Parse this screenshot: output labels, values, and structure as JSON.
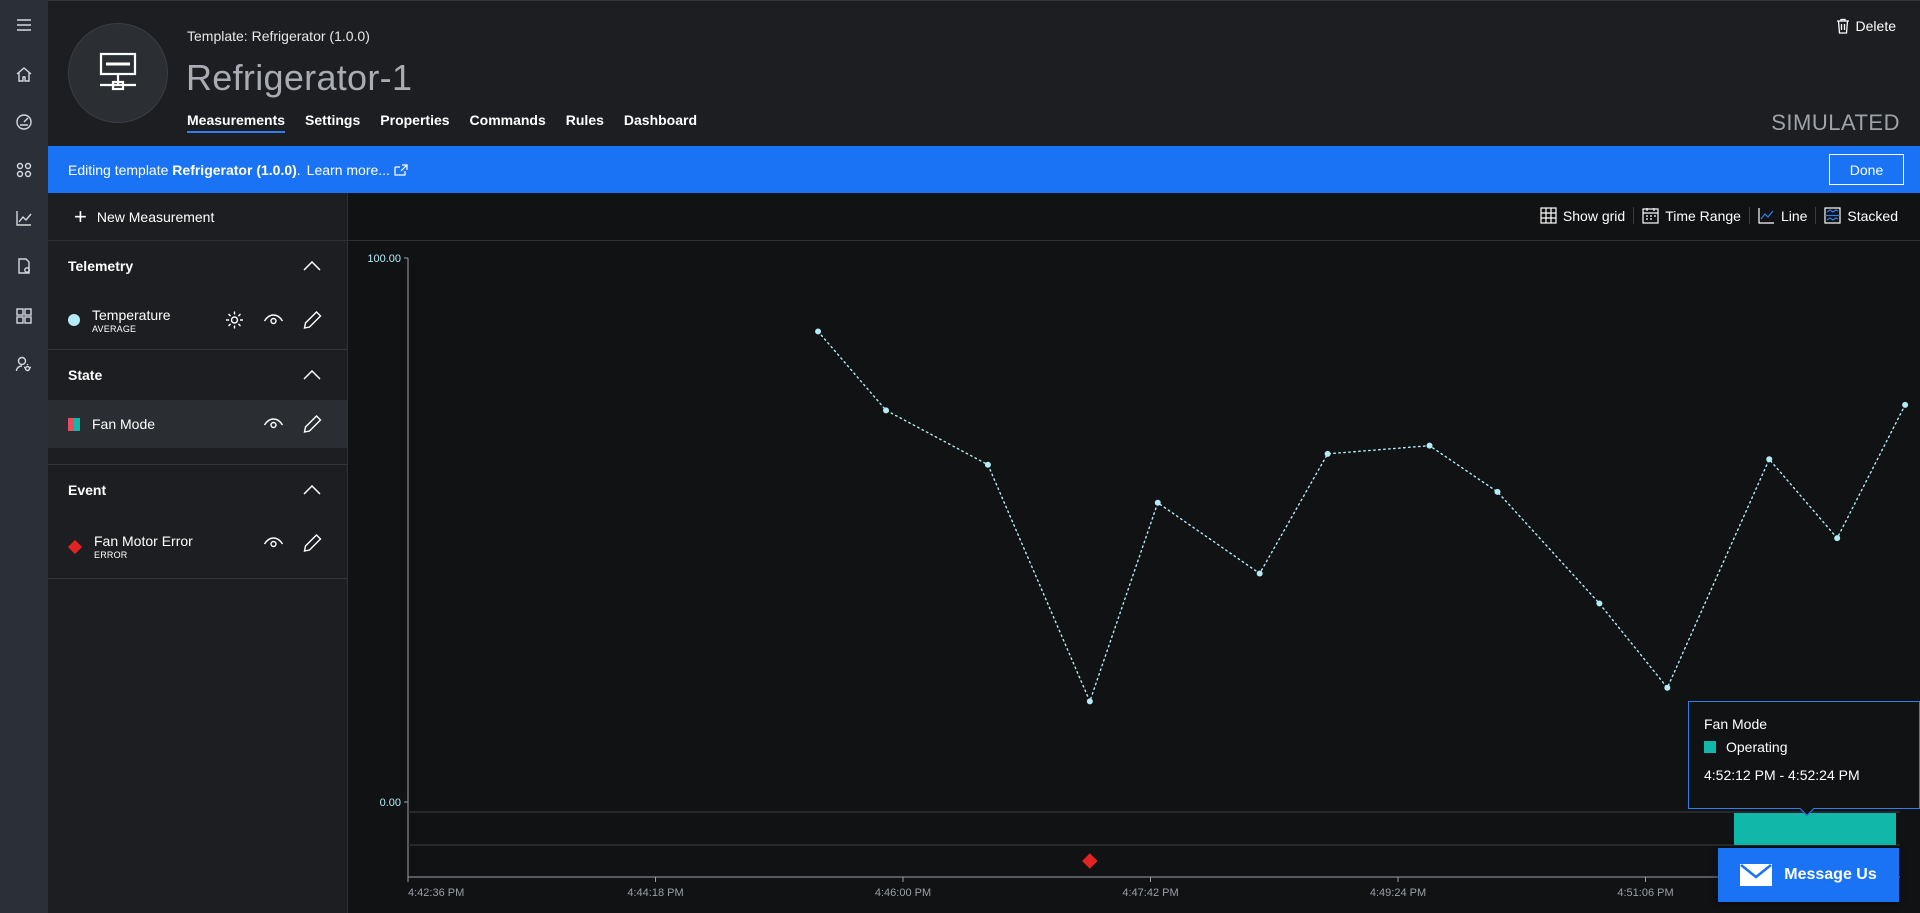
{
  "header": {
    "template_prefix": "Template:",
    "template_name": "Refrigerator",
    "template_version": "(1.0.0)",
    "device_title": "Refrigerator-1",
    "delete_label": "Delete",
    "device_mode": "SIMULATED",
    "tabs": [
      {
        "label": "Measurements",
        "active": true
      },
      {
        "label": "Settings"
      },
      {
        "label": "Properties"
      },
      {
        "label": "Commands"
      },
      {
        "label": "Rules"
      },
      {
        "label": "Dashboard"
      }
    ]
  },
  "banner": {
    "prefix": "Editing template",
    "template": "Refrigerator (1.0.0)",
    "suffix": ".",
    "learn_more": "Learn more...",
    "done_label": "Done",
    "color": "#1a73f5"
  },
  "panel": {
    "new_measurement": "New Measurement",
    "sections": {
      "telemetry": {
        "title": "Telemetry",
        "item_label": "Temperature",
        "item_sub": "AVERAGE",
        "color": "#b3ecf7"
      },
      "state": {
        "title": "State",
        "item_label": "Fan Mode"
      },
      "event": {
        "title": "Event",
        "item_label": "Fan Motor Error",
        "item_sub": "ERROR",
        "color": "#e02424"
      }
    }
  },
  "toolbar": {
    "show_grid": "Show grid",
    "time_range": "Time Range",
    "line": "Line",
    "stacked": "Stacked"
  },
  "tooltip": {
    "title": "Fan Mode",
    "state": "Operating",
    "time": "4:52:12 PM - 4:52:24 PM"
  },
  "message_us": "Message Us",
  "chart_data": {
    "type": "line",
    "ylim": [
      0,
      100
    ],
    "y_tick_labels": [
      "100.00",
      "0.00"
    ],
    "x_tick_labels": [
      "4:42:36 PM",
      "4:44:18 PM",
      "4:46:00 PM",
      "4:47:42 PM",
      "4:49:24 PM",
      "4:51:06 PM"
    ],
    "series": [
      {
        "color": "#b3ecf7",
        "x": [
          "4:45:25 PM",
          "4:45:53 PM",
          "4:46:35 PM",
          "4:47:17 PM",
          "4:47:45 PM",
          "4:48:27 PM",
          "4:48:55 PM",
          "4:49:37 PM",
          "4:50:05 PM",
          "4:50:47 PM",
          "4:51:15 PM",
          "4:51:57 PM",
          "4:52:25 PM",
          "4:52:53 PM"
        ],
        "values": [
          86.5,
          72,
          62,
          18.5,
          55,
          42,
          64,
          65.5,
          57,
          36.5,
          21,
          63,
          48.5,
          73
        ]
      }
    ],
    "state_band": {
      "label": "Operating",
      "color": "#11b7a8",
      "start": "4:52:12 PM",
      "end": "4:52:24 PM"
    },
    "events": [
      {
        "time": "4:47:17 PM",
        "label": "Fan Motor Error",
        "color": "#e02424"
      }
    ]
  }
}
